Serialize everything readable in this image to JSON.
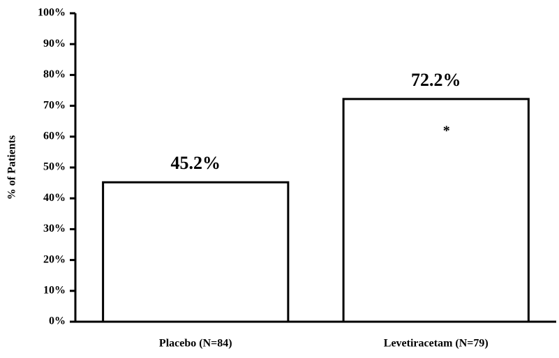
{
  "chart_data": {
    "type": "bar",
    "y_label": "% of Patients",
    "categories": [
      "Placebo (N=84)",
      "Levetiracetam  (N=79)"
    ],
    "values": [
      45.2,
      72.2
    ],
    "value_labels": [
      "45.2%",
      "72.2%"
    ],
    "color": "#ffffff",
    "annotation": "*",
    "ylim": [
      0,
      100
    ],
    "yticks": [
      {
        "value": 0,
        "label": "0%"
      },
      {
        "value": 10,
        "label": "10%"
      },
      {
        "value": 20,
        "label": "20%"
      },
      {
        "value": 30,
        "label": "30%"
      },
      {
        "value": 40,
        "label": "40%"
      },
      {
        "value": 50,
        "label": "50%"
      },
      {
        "value": 60,
        "label": "60%"
      },
      {
        "value": 70,
        "label": "70%"
      },
      {
        "value": 80,
        "label": "80%"
      },
      {
        "value": 90,
        "label": "90%"
      },
      {
        "value": 100,
        "label": "100%"
      }
    ],
    "grid": false
  }
}
